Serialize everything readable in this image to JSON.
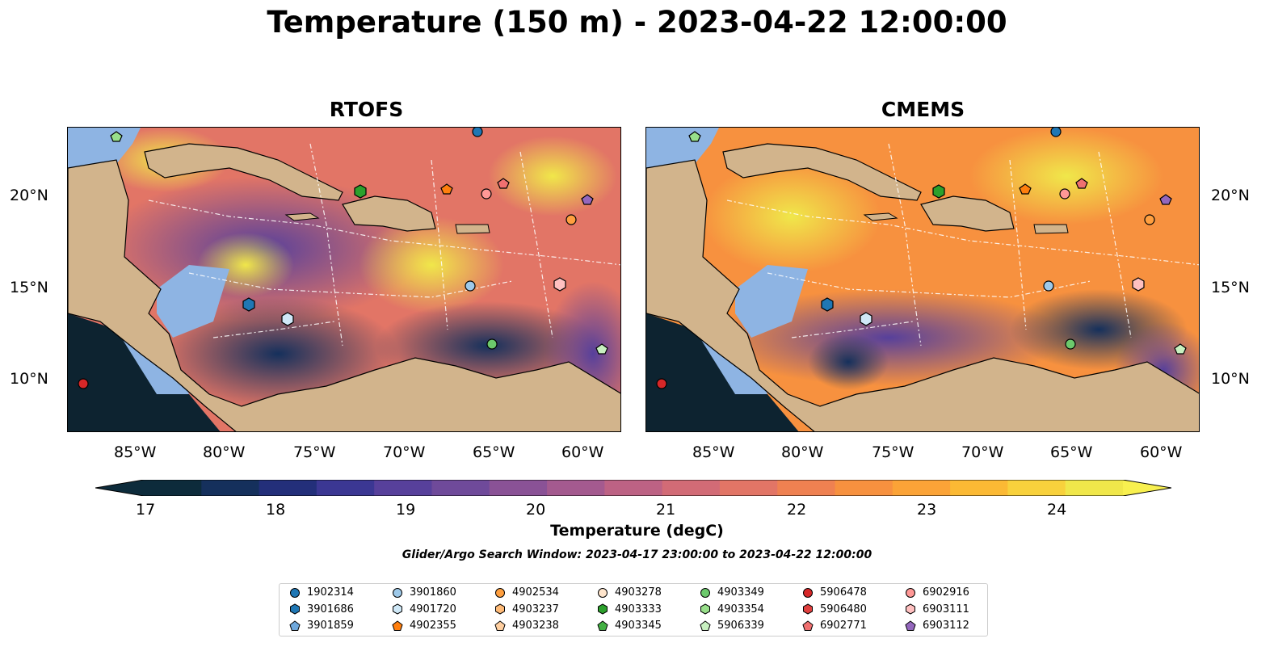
{
  "title": "Temperature (150 m) - 2023-04-22 12:00:00",
  "panels": [
    {
      "title": "RTOFS"
    },
    {
      "title": "CMEMS"
    }
  ],
  "axes": {
    "lon_labels": [
      "85°W",
      "80°W",
      "75°W",
      "70°W",
      "65°W",
      "60°W"
    ],
    "lat_labels": [
      "20°N",
      "15°N",
      "10°N"
    ]
  },
  "colorbar": {
    "label": "Temperature (degC)",
    "ticks": [
      "17",
      "18",
      "19",
      "20",
      "21",
      "22",
      "23",
      "24"
    ],
    "colors": [
      "#0d2b3b",
      "#15305c",
      "#232f7a",
      "#3b3793",
      "#57409b",
      "#6f4a9a",
      "#8a5296",
      "#a45a8f",
      "#bd6284",
      "#d26b76",
      "#e27566",
      "#ef8151",
      "#f7913f",
      "#fba337",
      "#fbb934",
      "#f8d13c",
      "#f0e74a"
    ]
  },
  "search_window": "Glider/Argo Search Window: 2023-04-17 23:00:00 to 2023-04-22 12:00:00",
  "legend": [
    {
      "label": "1902314",
      "color": "#1f77b4",
      "marker": "circle"
    },
    {
      "label": "3901686",
      "color": "#1f77b4",
      "marker": "hexagon"
    },
    {
      "label": "3901859",
      "color": "#6fa8dc",
      "marker": "pentagon"
    },
    {
      "label": "3901860",
      "color": "#9ec9e9",
      "marker": "circle"
    },
    {
      "label": "4901720",
      "color": "#cfe8f7",
      "marker": "hexagon"
    },
    {
      "label": "4902355",
      "color": "#ff7f0e",
      "marker": "pentagon"
    },
    {
      "label": "4902534",
      "color": "#ff9f3f",
      "marker": "circle"
    },
    {
      "label": "4903237",
      "color": "#ffbb78",
      "marker": "hexagon"
    },
    {
      "label": "4903238",
      "color": "#ffcfa0",
      "marker": "pentagon"
    },
    {
      "label": "4903278",
      "color": "#ffe5cc",
      "marker": "circle"
    },
    {
      "label": "4903333",
      "color": "#2ca02c",
      "marker": "hexagon"
    },
    {
      "label": "4903345",
      "color": "#43b043",
      "marker": "pentagon"
    },
    {
      "label": "4903349",
      "color": "#6cc96c",
      "marker": "circle"
    },
    {
      "label": "4903354",
      "color": "#98df8a",
      "marker": "hexagon"
    },
    {
      "label": "5906339",
      "color": "#c8f0c0",
      "marker": "pentagon"
    },
    {
      "label": "5906478",
      "color": "#d62728",
      "marker": "circle"
    },
    {
      "label": "5906480",
      "color": "#e0403f",
      "marker": "hexagon"
    },
    {
      "label": "6902771",
      "color": "#f07070",
      "marker": "pentagon"
    },
    {
      "label": "6902916",
      "color": "#ff9896",
      "marker": "circle"
    },
    {
      "label": "6903111",
      "color": "#ffc0c0",
      "marker": "hexagon"
    },
    {
      "label": "6903112",
      "color": "#9467bd",
      "marker": "pentagon"
    }
  ],
  "colors": {
    "land": "#d2b48c",
    "shelf": "#8eb4e3",
    "deep_pacific": "#0d2330"
  }
}
